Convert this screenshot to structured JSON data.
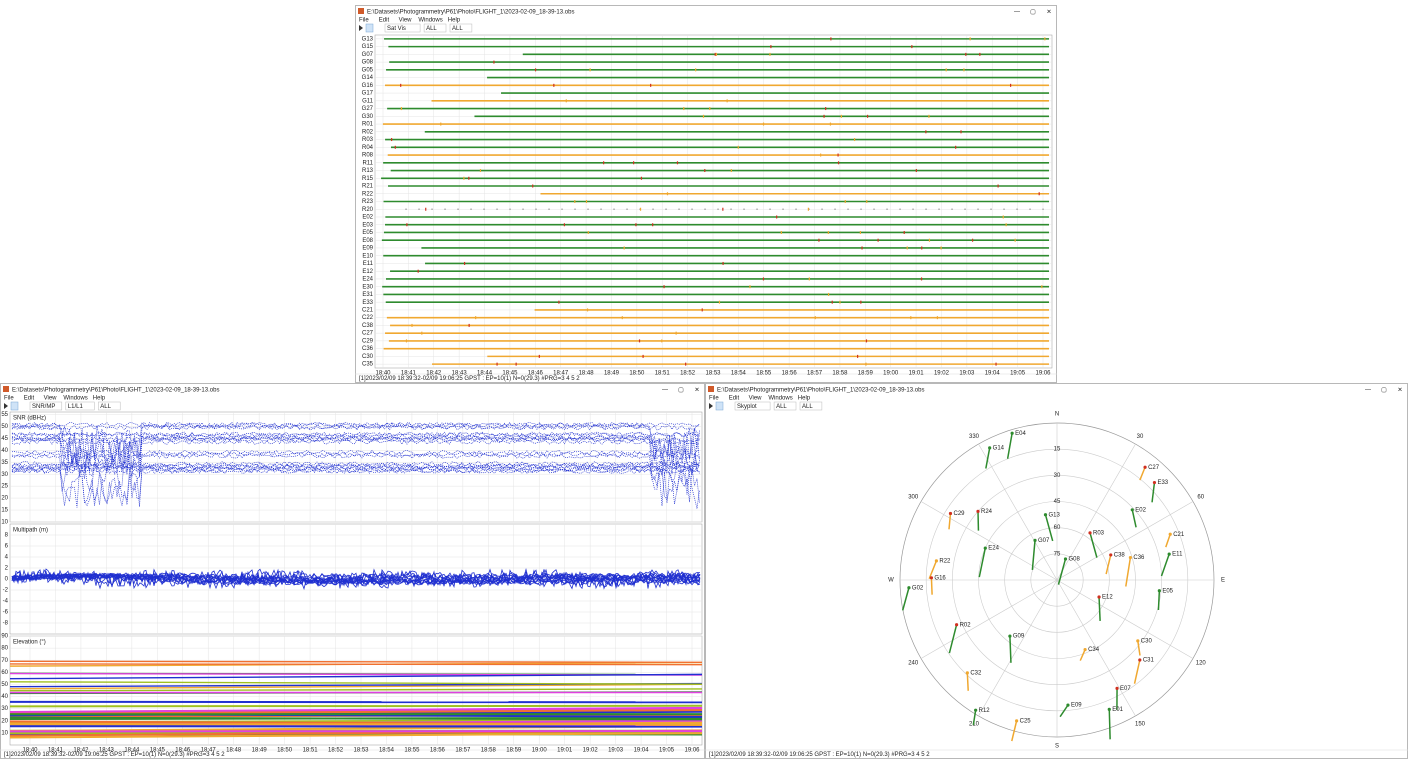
{
  "window_controls": [
    "—",
    "▢",
    "✕"
  ],
  "windows": [
    {
      "title": "E:\\Datasets\\Photogrammetry\\P61\\Photo\\FLIGHT_1\\2023-02-09_18-39-13.obs",
      "menu": [
        "File",
        "Edit",
        "View",
        "Windows",
        "Help"
      ],
      "toolbar": [
        "Sat Vis",
        "ALL",
        "ALL"
      ],
      "status": "[1]2023/02/09 18:39:32-02/09 19:06:25 GPST : EP=10(1) N=0(29.3) #PRG=3 4 5 2"
    },
    {
      "title": "E:\\Datasets\\Photogrammetry\\P61\\Photo\\FLIGHT_1\\2023-02-09_18-39-13.obs",
      "menu": [
        "File",
        "Edit",
        "View",
        "Windows",
        "Help"
      ],
      "toolbar": [
        "SNR/MP",
        "L1/L1",
        "ALL"
      ],
      "status": "[1]2023/02/09 18:39:32-02/09 19:06:25 GPST : EP=10(1) N=0(29.3) #PRG=3 4 5 2"
    },
    {
      "title": "E:\\Datasets\\Photogrammetry\\P61\\Photo\\FLIGHT_1\\2023-02-09_18-39-13.obs",
      "menu": [
        "File",
        "Edit",
        "View",
        "Windows",
        "Help"
      ],
      "toolbar": [
        "Skyplot",
        "ALL",
        "ALL"
      ],
      "status": "[1]2023/02/09 18:39:32-02/09 19:06:25 GPST : EP=10(1) N=0(29.3) #PRG=3 4 5 2"
    }
  ],
  "satvis": {
    "rows": [
      {
        "label": "G13",
        "color": "#2e8b2e"
      },
      {
        "label": "G15",
        "color": "#2e8b2e"
      },
      {
        "label": "G07",
        "color": "#2e8b2e"
      },
      {
        "label": "G08",
        "color": "#2e8b2e"
      },
      {
        "label": "G05",
        "color": "#2e8b2e"
      },
      {
        "label": "G14",
        "color": "#2e8b2e"
      },
      {
        "label": "G16",
        "color": "#f0a830"
      },
      {
        "label": "G17",
        "color": "#2e8b2e"
      },
      {
        "label": "G11",
        "color": "#f0a830"
      },
      {
        "label": "G27",
        "color": "#2e8b2e"
      },
      {
        "label": "G30",
        "color": "#2e8b2e"
      },
      {
        "label": "R01",
        "color": "#f0a830"
      },
      {
        "label": "R02",
        "color": "#2e8b2e"
      },
      {
        "label": "R03",
        "color": "#2e8b2e"
      },
      {
        "label": "R04",
        "color": "#2e8b2e"
      },
      {
        "label": "R08",
        "color": "#f0a830"
      },
      {
        "label": "R11",
        "color": "#2e8b2e"
      },
      {
        "label": "R13",
        "color": "#2e8b2e"
      },
      {
        "label": "R15",
        "color": "#2e8b2e"
      },
      {
        "label": "R21",
        "color": "#2e8b2e"
      },
      {
        "label": "R22",
        "color": "#f0a830"
      },
      {
        "label": "R23",
        "color": "#2e8b2e"
      },
      {
        "label": "R20",
        "color": "#888888"
      },
      {
        "label": "E02",
        "color": "#2e8b2e"
      },
      {
        "label": "E03",
        "color": "#2e8b2e"
      },
      {
        "label": "E05",
        "color": "#2e8b2e"
      },
      {
        "label": "E08",
        "color": "#2e8b2e"
      },
      {
        "label": "E09",
        "color": "#2e8b2e"
      },
      {
        "label": "E10",
        "color": "#2e8b2e"
      },
      {
        "label": "E11",
        "color": "#2e8b2e"
      },
      {
        "label": "E12",
        "color": "#2e8b2e"
      },
      {
        "label": "E24",
        "color": "#2e8b2e"
      },
      {
        "label": "E30",
        "color": "#2e8b2e"
      },
      {
        "label": "E31",
        "color": "#2e8b2e"
      },
      {
        "label": "E33",
        "color": "#2e8b2e"
      },
      {
        "label": "C21",
        "color": "#f0a830"
      },
      {
        "label": "C22",
        "color": "#f0a830"
      },
      {
        "label": "C38",
        "color": "#f0a830"
      },
      {
        "label": "C27",
        "color": "#f0a830"
      },
      {
        "label": "C29",
        "color": "#f0a830"
      },
      {
        "label": "C36",
        "color": "#f0a830"
      },
      {
        "label": "C30",
        "color": "#f0a830"
      },
      {
        "label": "C35",
        "color": "#f0a830"
      }
    ],
    "xticks": [
      "18:40",
      "18:41",
      "18:42",
      "18:43",
      "18:44",
      "18:45",
      "18:46",
      "18:47",
      "18:48",
      "18:49",
      "18:50",
      "18:51",
      "18:52",
      "18:53",
      "18:54",
      "18:55",
      "18:56",
      "18:57",
      "18:58",
      "18:59",
      "19:00",
      "19:01",
      "19:02",
      "19:03",
      "19:04",
      "19:05",
      "19:06"
    ]
  },
  "snr": {
    "xticks": [
      "18:40",
      "18:41",
      "18:42",
      "18:43",
      "18:44",
      "18:45",
      "18:46",
      "18:47",
      "18:48",
      "18:49",
      "18:50",
      "18:51",
      "18:52",
      "18:53",
      "18:54",
      "18:55",
      "18:56",
      "18:57",
      "18:58",
      "18:59",
      "19:00",
      "19:01",
      "19:02",
      "19:03",
      "19:04",
      "19:05",
      "19:06"
    ],
    "panels": [
      {
        "label": "SNR (dBHz)",
        "ylim": [
          10,
          56
        ],
        "yticks": [
          10,
          15,
          20,
          25,
          30,
          35,
          40,
          45,
          50,
          55
        ]
      },
      {
        "label": "Multipath (m)",
        "ylim": [
          -10,
          10
        ],
        "yticks": [
          -8,
          -6,
          -4,
          -2,
          0,
          2,
          4,
          6,
          8
        ]
      },
      {
        "label": "Elevation (°)",
        "ylim": [
          0,
          90
        ],
        "yticks": [
          10,
          20,
          30,
          40,
          50,
          60,
          70,
          80,
          90
        ]
      }
    ]
  },
  "sky": {
    "elticks": [
      15,
      30,
      45,
      60,
      75
    ],
    "azticks": [
      {
        "value": 0,
        "label": "N"
      },
      30,
      60,
      {
        "value": 90,
        "label": "E"
      },
      120,
      150,
      {
        "value": 180,
        "label": "S"
      },
      210,
      240,
      {
        "value": 270,
        "label": "W"
      },
      300,
      330
    ],
    "satellites": [
      {
        "name": "G14",
        "az": 333,
        "el": 5,
        "color": "#2e8b2e"
      },
      {
        "name": "E04",
        "az": 343,
        "el": 2,
        "color": "#2e8b2e"
      },
      {
        "name": "C27",
        "az": 38,
        "el": 8,
        "color": "#f0a830"
      },
      {
        "name": "E33",
        "az": 45,
        "el": 11,
        "color": "#2e8b2e"
      },
      {
        "name": "C29",
        "az": 302,
        "el": 18,
        "color": "#f0a830"
      },
      {
        "name": "R24",
        "az": 311,
        "el": 30,
        "color": "#2e8b2e"
      },
      {
        "name": "E02",
        "az": 47,
        "el": 31,
        "color": "#2e8b2e"
      },
      {
        "name": "G13",
        "az": 350,
        "el": 52,
        "color": "#2e8b2e"
      },
      {
        "name": "C21",
        "az": 68,
        "el": 20,
        "color": "#f0a830"
      },
      {
        "name": "E11",
        "az": 77,
        "el": 24,
        "color": "#2e8b2e"
      },
      {
        "name": "R03",
        "az": 35,
        "el": 57,
        "color": "#2e8b2e"
      },
      {
        "name": "G07",
        "az": 331,
        "el": 64,
        "color": "#2e8b2e"
      },
      {
        "name": "C38",
        "az": 65,
        "el": 56,
        "color": "#f0a830"
      },
      {
        "name": "C36",
        "az": 73,
        "el": 46,
        "color": "#f0a830"
      },
      {
        "name": "G08",
        "az": 22,
        "el": 77,
        "color": "#2e8b2e"
      },
      {
        "name": "E12",
        "az": 112,
        "el": 64,
        "color": "#2e8b2e"
      },
      {
        "name": "E05",
        "az": 96,
        "el": 31,
        "color": "#2e8b2e"
      },
      {
        "name": "R22",
        "az": 279,
        "el": 20,
        "color": "#f0a830"
      },
      {
        "name": "E24",
        "az": 294,
        "el": 45,
        "color": "#2e8b2e"
      },
      {
        "name": "G02",
        "az": 267,
        "el": 5,
        "color": "#2e8b2e"
      },
      {
        "name": "G16",
        "az": 271,
        "el": 18,
        "color": "#f0a830"
      },
      {
        "name": "R02",
        "az": 246,
        "el": 27,
        "color": "#2e8b2e"
      },
      {
        "name": "G09",
        "az": 220,
        "el": 48,
        "color": "#2e8b2e"
      },
      {
        "name": "C30",
        "az": 127,
        "el": 32,
        "color": "#f0a830"
      },
      {
        "name": "C34",
        "az": 158,
        "el": 47,
        "color": "#f0a830"
      },
      {
        "name": "C31",
        "az": 134,
        "el": 24,
        "color": "#f0a830"
      },
      {
        "name": "C32",
        "az": 224,
        "el": 16,
        "color": "#f0a830"
      },
      {
        "name": "R12",
        "az": 212,
        "el": 2,
        "color": "#2e8b2e"
      },
      {
        "name": "E07",
        "az": 151,
        "el": 19,
        "color": "#2e8b2e"
      },
      {
        "name": "E09",
        "az": 175,
        "el": 18,
        "color": "#2e8b2e"
      },
      {
        "name": "E01",
        "az": 158,
        "el": 10,
        "color": "#2e8b2e"
      },
      {
        "name": "C25",
        "az": 196,
        "el": 6,
        "color": "#f0a830"
      }
    ]
  }
}
